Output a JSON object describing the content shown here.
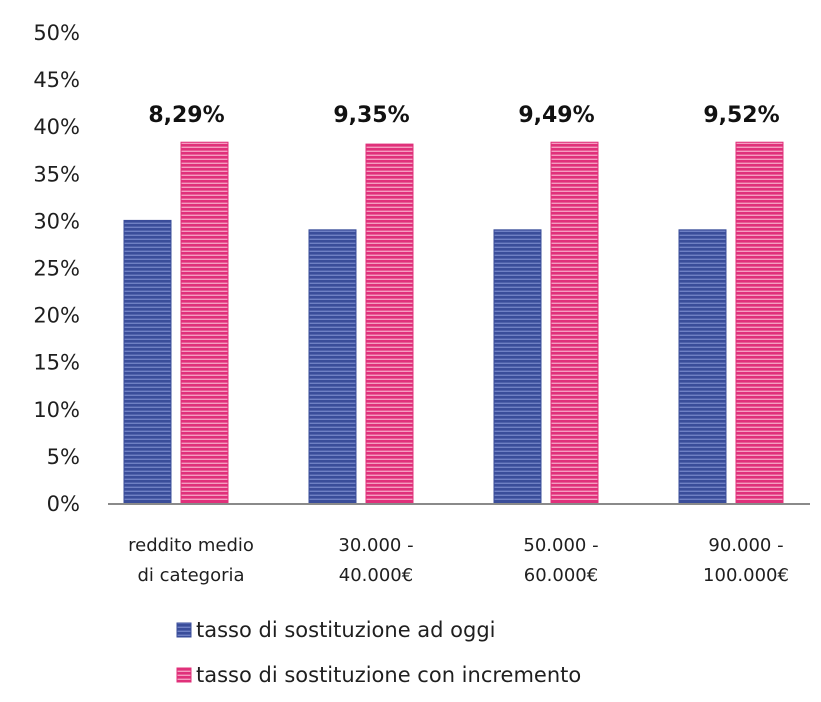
{
  "chart_data": {
    "type": "bar",
    "categories": [
      [
        "reddito medio",
        "di categoria"
      ],
      [
        "30.000 -",
        "40.000€"
      ],
      [
        "50.000 -",
        "60.000€"
      ],
      [
        "90.000 -",
        "100.000€"
      ]
    ],
    "series": [
      {
        "name": "tasso di sostituzione ad oggi",
        "color": "#3a4d9a",
        "values": [
          30,
          29,
          29,
          29
        ]
      },
      {
        "name": "tasso di sostituzione con incremento",
        "color": "#e0307a",
        "values": [
          38.3,
          38.1,
          38.3,
          38.3
        ]
      }
    ],
    "data_labels": [
      "8,29%",
      "9,35%",
      "9,49%",
      "9,52%"
    ],
    "ylim": [
      0,
      50
    ],
    "y_ticks": [
      0,
      5,
      10,
      15,
      20,
      25,
      30,
      35,
      40,
      45,
      50
    ],
    "y_tick_labels": [
      "0%",
      "5%",
      "10%",
      "15%",
      "20%",
      "25%",
      "30%",
      "35%",
      "40%",
      "45%",
      "50%"
    ],
    "legend_position": "bottom",
    "grid": false
  }
}
